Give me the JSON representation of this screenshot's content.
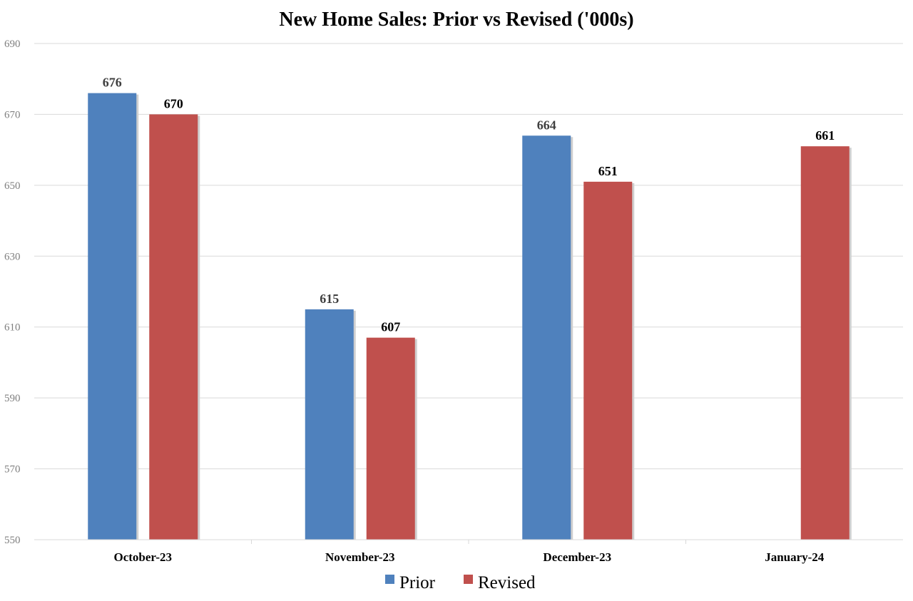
{
  "chart_data": {
    "type": "bar",
    "title": "New Home Sales: Prior vs Revised ('000s)",
    "categories": [
      "October-23",
      "November-23",
      "December-23",
      "January-24"
    ],
    "series": [
      {
        "name": "Prior",
        "color": "#4f81bd",
        "label_color": "#404040",
        "values": [
          676,
          615,
          664,
          null
        ]
      },
      {
        "name": "Revised",
        "color": "#c0504d",
        "label_color": "#000000",
        "values": [
          670,
          607,
          651,
          661
        ]
      }
    ],
    "ylim": [
      550,
      690
    ],
    "yticks": [
      550,
      570,
      590,
      610,
      630,
      650,
      670,
      690
    ],
    "grid": true,
    "legend_position": "bottom-center",
    "xlabel": "",
    "ylabel": ""
  }
}
